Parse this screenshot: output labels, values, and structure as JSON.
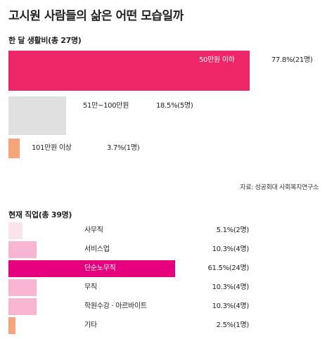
{
  "title": "고시원 사람들의 삶은 어떤 모습일까",
  "source": "자료: 성공회대 사회복지연구소",
  "chart_data": [
    {
      "type": "bar",
      "orientation": "horizontal",
      "title": "한 달 생활비(총 27명)",
      "categories": [
        "50만원 이하",
        "51만~100만원",
        "101만원 이상"
      ],
      "values": [
        77.8,
        18.5,
        3.7
      ],
      "counts": [
        "21명",
        "5명",
        "1명"
      ],
      "value_labels": [
        "77.8%(21명)",
        "18.5%(5명)",
        "3.7%(1명)"
      ],
      "colors": [
        "#ee2667",
        "#e0e0e0",
        "#f4a57c"
      ],
      "xlim": [
        0,
        100
      ],
      "grid": false,
      "legend": "none"
    },
    {
      "type": "bar",
      "orientation": "horizontal",
      "title": "현재 직업(총 39명)",
      "categories": [
        "사무직",
        "서비스업",
        "단순노무직",
        "무직",
        "학원수강 · 아르바이트",
        "기타"
      ],
      "values": [
        5.1,
        10.3,
        61.5,
        10.3,
        10.3,
        2.5
      ],
      "counts": [
        "2명",
        "4명",
        "24명",
        "4명",
        "4명",
        "1명"
      ],
      "value_labels": [
        "5.1%(2명)",
        "10.3%(4명)",
        "61.5%(24명)",
        "10.3%(4명)",
        "10.3%(4명)",
        "2.5%(1명)"
      ],
      "colors": [
        "#fbe3ec",
        "#f7b5d2",
        "#e6007e",
        "#f7b5d2",
        "#f7b5d2",
        "#f4a57c"
      ],
      "xlim": [
        0,
        100
      ],
      "grid": false,
      "legend": "none"
    }
  ]
}
